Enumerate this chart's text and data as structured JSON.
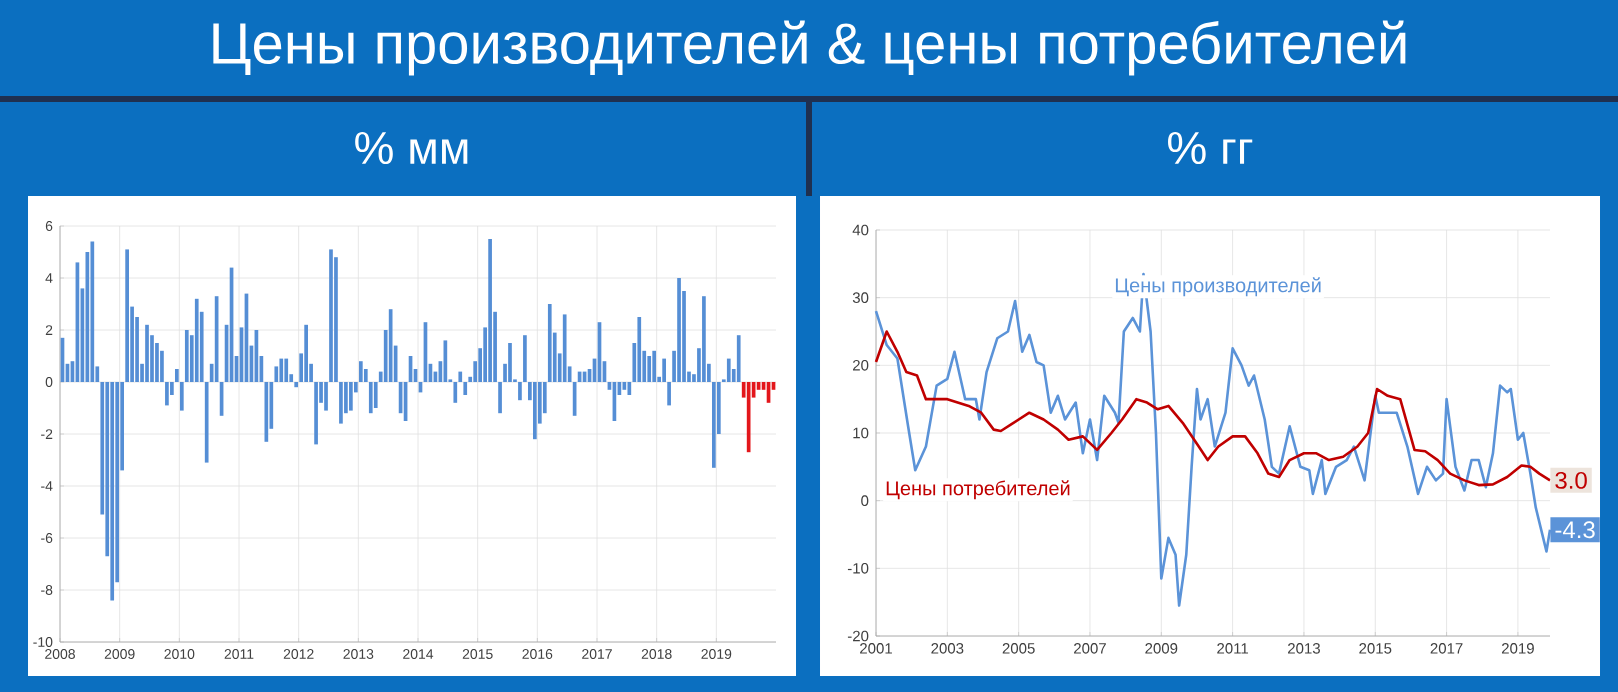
{
  "chart_data": [
    {
      "type": "bar",
      "title": "Цены производителей & цены потребителей",
      "subtitle": "% мм",
      "xlim": [
        "2008",
        "2020"
      ],
      "xticks": [
        "2008",
        "2009",
        "2010",
        "2011",
        "2012",
        "2013",
        "2014",
        "2015",
        "2016",
        "2017",
        "2018",
        "2019"
      ],
      "ylim": [
        -10,
        6
      ],
      "yticks": [
        -10,
        -8,
        -6,
        -4,
        -2,
        0,
        2,
        4,
        6
      ],
      "grid": true,
      "series": [
        {
          "color": "#558ed5",
          "x": [
            "2008-01",
            "2008-02",
            "2008-03",
            "2008-04",
            "2008-05",
            "2008-06",
            "2008-07",
            "2008-08",
            "2008-09",
            "2008-10",
            "2008-11",
            "2008-12",
            "2009-01",
            "2009-02",
            "2009-03",
            "2009-04",
            "2009-05",
            "2009-06",
            "2009-07",
            "2009-08",
            "2009-09",
            "2009-10",
            "2009-11",
            "2009-12",
            "2010-01",
            "2010-02",
            "2010-03",
            "2010-04",
            "2010-05",
            "2010-06",
            "2010-07",
            "2010-08",
            "2010-09",
            "2010-10",
            "2010-11",
            "2010-12",
            "2011-01",
            "2011-02",
            "2011-03",
            "2011-04",
            "2011-05",
            "2011-06",
            "2011-07",
            "2011-08",
            "2011-09",
            "2011-10",
            "2011-11",
            "2011-12",
            "2012-01",
            "2012-02",
            "2012-03",
            "2012-04",
            "2012-05",
            "2012-06",
            "2012-07",
            "2012-08",
            "2012-09",
            "2012-10",
            "2012-11",
            "2012-12",
            "2013-01",
            "2013-02",
            "2013-03",
            "2013-04",
            "2013-05",
            "2013-06",
            "2013-07",
            "2013-08",
            "2013-09",
            "2013-10",
            "2013-11",
            "2013-12",
            "2014-01",
            "2014-02",
            "2014-03",
            "2014-04",
            "2014-05",
            "2014-06",
            "2014-07",
            "2014-08",
            "2014-09",
            "2014-10",
            "2014-11",
            "2014-12",
            "2015-01",
            "2015-02",
            "2015-03",
            "2015-04",
            "2015-05",
            "2015-06",
            "2015-07",
            "2015-08",
            "2015-09",
            "2015-10",
            "2015-11",
            "2015-12",
            "2016-01",
            "2016-02",
            "2016-03",
            "2016-04",
            "2016-05",
            "2016-06",
            "2016-07",
            "2016-08",
            "2016-09",
            "2016-10",
            "2016-11",
            "2016-12",
            "2017-01",
            "2017-02",
            "2017-03",
            "2017-04",
            "2017-05",
            "2017-06",
            "2017-07",
            "2017-08",
            "2017-09",
            "2017-10",
            "2017-11",
            "2017-12",
            "2018-01",
            "2018-02",
            "2018-03",
            "2018-04",
            "2018-05",
            "2018-06",
            "2018-07",
            "2018-08",
            "2018-09",
            "2018-10",
            "2018-11",
            "2018-12",
            "2019-01",
            "2019-02",
            "2019-03",
            "2019-04",
            "2019-05"
          ],
          "values": [
            1.7,
            0.7,
            0.8,
            4.6,
            3.6,
            5.0,
            5.4,
            0.6,
            -5.1,
            -6.7,
            -8.4,
            -7.7,
            -3.4,
            5.1,
            2.9,
            2.5,
            0.7,
            2.2,
            1.8,
            1.5,
            1.2,
            -0.9,
            -0.5,
            0.5,
            -1.1,
            2.0,
            1.8,
            3.2,
            2.7,
            -3.1,
            0.7,
            3.3,
            -1.3,
            2.2,
            4.4,
            1.0,
            2.1,
            3.4,
            1.4,
            2.0,
            1.0,
            -2.3,
            -1.8,
            0.6,
            0.9,
            0.9,
            0.3,
            -0.2,
            1.1,
            2.2,
            0.7,
            -2.4,
            -0.8,
            -1.1,
            5.1,
            4.8,
            -1.6,
            -1.2,
            -1.1,
            -0.4,
            0.8,
            0.5,
            -1.2,
            -1.0,
            0.4,
            2.0,
            2.8,
            1.4,
            -1.2,
            -1.5,
            1.0,
            0.5,
            -0.4,
            2.3,
            0.7,
            0.4,
            0.8,
            1.6,
            0.1,
            -0.8,
            0.4,
            -0.5,
            0.2,
            0.8,
            1.3,
            2.1,
            5.5,
            2.7,
            -1.2,
            0.7,
            1.5,
            0.1,
            -0.7,
            1.8,
            -0.7,
            -2.2,
            -1.6,
            -1.2,
            3.0,
            1.9,
            1.1,
            2.6,
            0.6,
            -1.3,
            0.4,
            0.4,
            0.5,
            0.9,
            2.3,
            0.8,
            -0.3,
            -1.5,
            -0.5,
            -0.3,
            -0.5,
            1.5,
            2.5,
            1.2,
            1.0,
            1.2,
            0.2,
            0.9,
            -0.9,
            1.2,
            4.0,
            3.5,
            0.4,
            0.3,
            1.3,
            3.3,
            0.7,
            -3.3,
            -2.0,
            0.1,
            0.9,
            0.5,
            1.8
          ]
        },
        {
          "color": "#e3161b",
          "x": [
            "2019-06",
            "2019-07",
            "2019-08",
            "2019-09",
            "2019-10",
            "2019-11",
            "2019-12"
          ],
          "values": [
            -0.6,
            -2.7,
            -0.6,
            -0.3,
            -0.3,
            -0.8,
            -0.3
          ]
        }
      ]
    },
    {
      "type": "line",
      "subtitle": "% гг",
      "xlim": [
        2001,
        2019.9
      ],
      "xticks": [
        2001,
        2003,
        2005,
        2007,
        2009,
        2011,
        2013,
        2015,
        2017,
        2019
      ],
      "ylim": [
        -20,
        40
      ],
      "yticks": [
        -20,
        -10,
        0,
        10,
        20,
        30,
        40
      ],
      "grid": true,
      "series": [
        {
          "name": "Цены производителей",
          "color": "#5b93d8",
          "x": [
            2001.0,
            2001.3,
            2001.6,
            2001.9,
            2002.1,
            2002.4,
            2002.7,
            2003.0,
            2003.2,
            2003.5,
            2003.8,
            2003.9,
            2004.1,
            2004.4,
            2004.7,
            2004.9,
            2005.1,
            2005.3,
            2005.5,
            2005.7,
            2005.9,
            2006.1,
            2006.3,
            2006.6,
            2006.8,
            2007.0,
            2007.2,
            2007.4,
            2007.7,
            2007.8,
            2007.95,
            2008.2,
            2008.4,
            2008.5,
            2008.7,
            2008.85,
            2009.0,
            2009.2,
            2009.4,
            2009.5,
            2009.7,
            2009.85,
            2010.0,
            2010.1,
            2010.3,
            2010.5,
            2010.8,
            2011.0,
            2011.25,
            2011.45,
            2011.6,
            2011.9,
            2012.1,
            2012.3,
            2012.6,
            2012.9,
            2013.15,
            2013.25,
            2013.5,
            2013.6,
            2013.9,
            2014.2,
            2014.4,
            2014.7,
            2015.0,
            2015.1,
            2015.35,
            2015.6,
            2015.9,
            2016.2,
            2016.45,
            2016.7,
            2016.9,
            2017.0,
            2017.25,
            2017.5,
            2017.7,
            2017.9,
            2018.1,
            2018.3,
            2018.5,
            2018.7,
            2018.8,
            2019.0,
            2019.15,
            2019.35,
            2019.5,
            2019.8,
            2019.9
          ],
          "values": [
            28,
            23,
            21,
            11,
            4.5,
            8,
            17,
            18,
            22,
            15,
            15,
            12,
            19,
            24,
            25,
            29.5,
            22,
            24.5,
            20.5,
            20,
            13,
            15.5,
            12,
            14.5,
            7,
            12,
            6,
            15.5,
            13,
            11.5,
            25,
            27,
            25,
            33.5,
            25,
            10,
            -11.5,
            -5.5,
            -8,
            -15.5,
            -8,
            5,
            16.5,
            12,
            15,
            8,
            13,
            22.5,
            20,
            17,
            18.5,
            12,
            5,
            4,
            11,
            5,
            4.5,
            1,
            6,
            1,
            5,
            6,
            8,
            3,
            15.5,
            13,
            13,
            13,
            8,
            1,
            5,
            3,
            4,
            15,
            5,
            1.5,
            6,
            6,
            2,
            7,
            17,
            16,
            16.5,
            9,
            10,
            4,
            -1,
            -7.5,
            -4.3
          ]
        },
        {
          "name": "Цены потребителей",
          "color": "#c00000",
          "x": [
            2001.0,
            2001.3,
            2001.6,
            2001.85,
            2002.15,
            2002.4,
            2003.0,
            2003.6,
            2003.95,
            2004.3,
            2004.5,
            2004.8,
            2005.3,
            2005.7,
            2006.1,
            2006.4,
            2006.8,
            2007.2,
            2007.6,
            2007.9,
            2008.3,
            2008.6,
            2008.9,
            2009.2,
            2009.6,
            2010.05,
            2010.3,
            2010.6,
            2011.0,
            2011.35,
            2011.7,
            2012.0,
            2012.3,
            2012.6,
            2013.0,
            2013.35,
            2013.7,
            2014.1,
            2014.5,
            2014.8,
            2015.05,
            2015.35,
            2015.7,
            2016.1,
            2016.4,
            2016.75,
            2017.1,
            2017.5,
            2017.9,
            2018.3,
            2018.7,
            2019.1,
            2019.35,
            2019.6,
            2019.9
          ],
          "values": [
            20.5,
            25,
            22,
            19,
            18.5,
            15,
            15,
            14,
            13,
            10.5,
            10.3,
            11.3,
            13,
            12,
            10.5,
            9,
            9.5,
            7.5,
            10,
            12,
            15,
            14.5,
            13.5,
            14,
            11.5,
            8,
            6,
            8,
            9.5,
            9.5,
            7,
            4,
            3.5,
            6,
            7,
            7,
            6,
            6.5,
            8,
            10,
            16.5,
            15.5,
            15,
            7.5,
            7.3,
            6,
            4,
            3,
            2.3,
            2.4,
            3.5,
            5.2,
            5,
            4,
            3.0
          ]
        }
      ],
      "annotations": [
        {
          "text": "-4.3",
          "x": 2019.9,
          "y": -4.3
        },
        {
          "text": "3.0",
          "x": 2019.9,
          "y": 3.0
        }
      ]
    }
  ]
}
